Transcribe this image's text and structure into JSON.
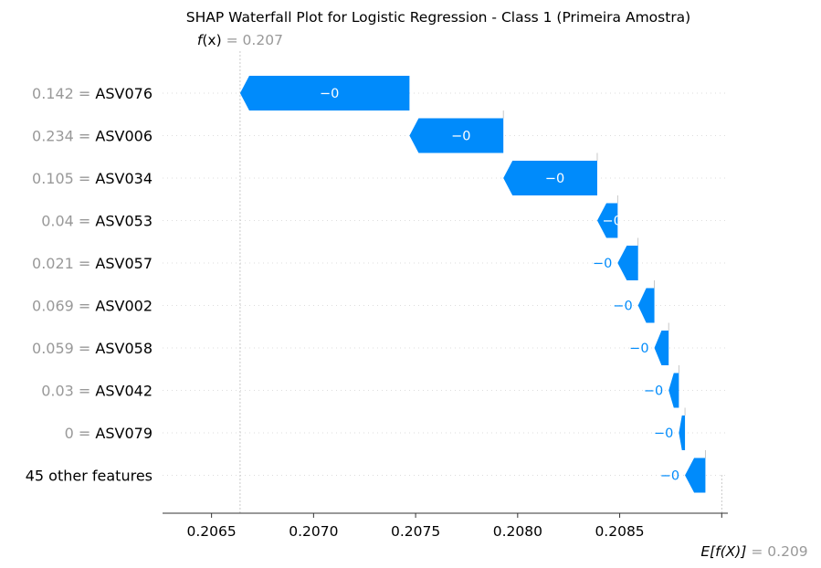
{
  "chart_data": {
    "type": "waterfall",
    "title": "SHAP Waterfall Plot for Logistic Regression - Class 1 (Primeira Amostra)",
    "fx": {
      "label_prefix": "f",
      "label_arg": "(x)",
      "value_text": "= 0.207",
      "value": 0.20664
    },
    "efx": {
      "label": "E[f(X)]",
      "value_text": "= 0.209",
      "value": 0.209
    },
    "x_ticks": [
      "0.2065",
      "0.2070",
      "0.2075",
      "0.2080",
      "0.2085"
    ],
    "x_tick_values": [
      0.2065,
      0.207,
      0.2075,
      0.208,
      0.2085
    ],
    "xlim": [
      0.20626,
      0.20903
    ],
    "bar_color": "#008bfb",
    "rows": [
      {
        "feature_value": "0.142 =",
        "feature": "ASV076",
        "start": 0.20747,
        "end": 0.20664,
        "label": "−0",
        "label_inside": true
      },
      {
        "feature_value": "0.234 =",
        "feature": "ASV006",
        "start": 0.20793,
        "end": 0.20747,
        "label": "−0",
        "label_inside": true
      },
      {
        "feature_value": "0.105 =",
        "feature": "ASV034",
        "start": 0.20839,
        "end": 0.20793,
        "label": "−0",
        "label_inside": true
      },
      {
        "feature_value": "0.04 =",
        "feature": "ASV053",
        "start": 0.20849,
        "end": 0.20839,
        "label": "−0",
        "label_inside": true
      },
      {
        "feature_value": "0.021 =",
        "feature": "ASV057",
        "start": 0.20859,
        "end": 0.20849,
        "label": "−0",
        "label_inside": false
      },
      {
        "feature_value": "0.069 =",
        "feature": "ASV002",
        "start": 0.20867,
        "end": 0.20859,
        "label": "−0",
        "label_inside": false
      },
      {
        "feature_value": "0.059 =",
        "feature": "ASV058",
        "start": 0.20874,
        "end": 0.20867,
        "label": "−0",
        "label_inside": false
      },
      {
        "feature_value": "0.03 =",
        "feature": "ASV042",
        "start": 0.20879,
        "end": 0.20874,
        "label": "−0",
        "label_inside": false
      },
      {
        "feature_value": "0 =",
        "feature": "ASV079",
        "start": 0.20882,
        "end": 0.20879,
        "label": "−0",
        "label_inside": false
      },
      {
        "feature_value": "",
        "feature": "45 other features",
        "start": 0.20892,
        "end": 0.20882,
        "label": "−0",
        "label_inside": false
      }
    ]
  }
}
